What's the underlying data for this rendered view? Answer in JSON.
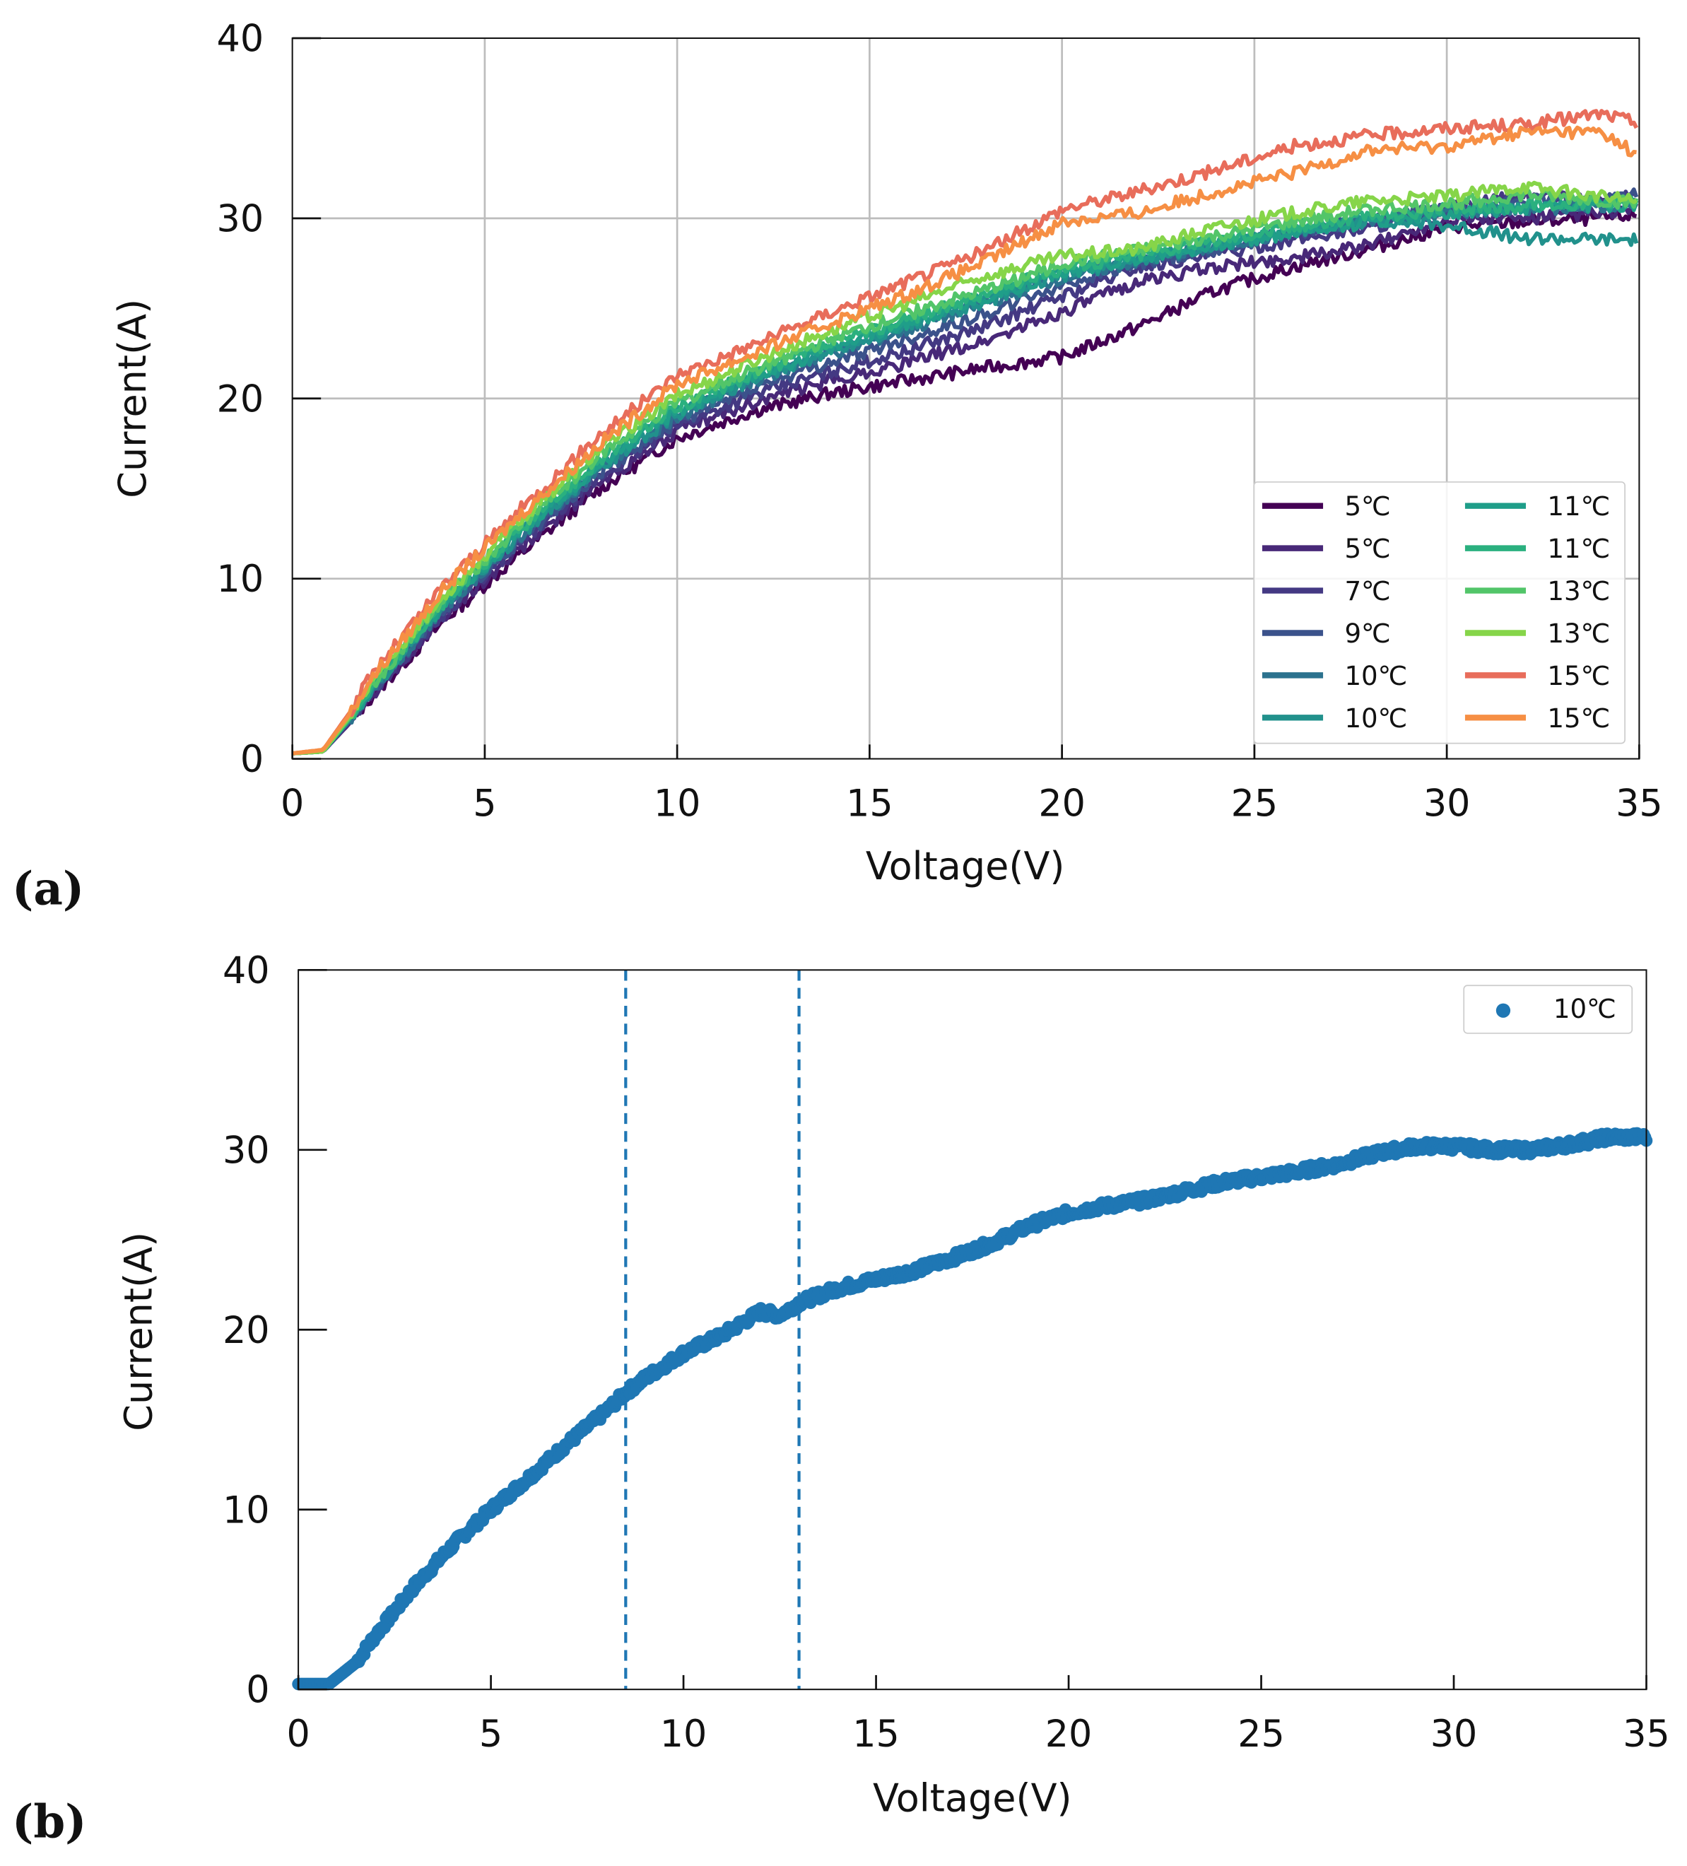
{
  "chart_data": [
    {
      "panel_label": "(a)",
      "type": "line",
      "xlabel": "Voltage(V)",
      "ylabel": "Current(A)",
      "xlim": [
        0,
        35
      ],
      "ylim": [
        0,
        40
      ],
      "xticks": [
        0,
        5,
        10,
        15,
        20,
        25,
        30,
        35
      ],
      "yticks": [
        0,
        10,
        20,
        30,
        40
      ],
      "grid": true,
      "legend_placement": "lower-right",
      "legend_columns": 2,
      "x": [
        0,
        0.8,
        1.5,
        2,
        4,
        6,
        8,
        10,
        12,
        14,
        16,
        18,
        20,
        22,
        24,
        26,
        28,
        30,
        32,
        34,
        35
      ],
      "series": [
        {
          "name": "5℃",
          "color": "#440154",
          "values": [
            0.3,
            0.4,
            2.0,
            3.3,
            7.8,
            11.5,
            15.0,
            17.8,
            19.3,
            20.3,
            21.0,
            21.7,
            22.3,
            24.0,
            26.0,
            27.3,
            28.3,
            29.5,
            29.8,
            30.0,
            30.2
          ]
        },
        {
          "name": "5℃",
          "color": "#482878",
          "values": [
            0.3,
            0.4,
            2.0,
            3.4,
            8.0,
            11.8,
            15.3,
            18.2,
            19.8,
            21.0,
            22.0,
            23.2,
            24.8,
            26.5,
            27.3,
            27.8,
            28.5,
            30.0,
            30.0,
            30.3,
            30.5
          ]
        },
        {
          "name": "7℃",
          "color": "#443983",
          "values": [
            0.3,
            0.4,
            2.1,
            3.5,
            8.2,
            12.1,
            15.6,
            18.5,
            20.2,
            21.5,
            22.7,
            24.0,
            25.7,
            27.3,
            28.0,
            28.8,
            29.5,
            30.5,
            31.3,
            31.0,
            31.3
          ]
        },
        {
          "name": "9℃",
          "color": "#3b528b",
          "values": [
            0.3,
            0.4,
            2.1,
            3.6,
            8.4,
            12.3,
            15.9,
            18.7,
            20.6,
            22.0,
            23.3,
            24.7,
            26.3,
            27.5,
            28.3,
            29.2,
            30.0,
            30.5,
            31.0,
            31.0,
            31.5
          ]
        },
        {
          "name": "10℃",
          "color": "#2c728e",
          "values": [
            0.3,
            0.4,
            2.2,
            3.7,
            8.5,
            12.5,
            16.1,
            19.0,
            21.0,
            22.5,
            23.8,
            25.3,
            26.7,
            27.6,
            28.4,
            29.2,
            29.8,
            30.3,
            30.5,
            30.7,
            30.8
          ]
        },
        {
          "name": "10℃",
          "color": "#21918c",
          "values": [
            0.3,
            0.4,
            2.2,
            3.7,
            8.6,
            12.6,
            16.2,
            19.1,
            21.1,
            22.6,
            24.0,
            25.4,
            26.8,
            27.7,
            28.5,
            29.3,
            29.9,
            29.6,
            28.9,
            28.8,
            28.8
          ]
        },
        {
          "name": "11℃",
          "color": "#1f9e89",
          "values": [
            0.3,
            0.4,
            2.2,
            3.8,
            8.7,
            12.7,
            16.4,
            19.3,
            21.2,
            22.8,
            24.2,
            25.6,
            27.0,
            27.8,
            28.5,
            29.2,
            29.8,
            30.3,
            30.5,
            30.7,
            30.8
          ]
        },
        {
          "name": "11℃",
          "color": "#2ab07f",
          "values": [
            0.3,
            0.4,
            2.3,
            3.8,
            8.8,
            12.9,
            16.6,
            19.5,
            21.4,
            23.0,
            24.4,
            25.8,
            27.2,
            28.0,
            28.8,
            29.5,
            30.1,
            30.5,
            30.7,
            30.9,
            31.0
          ]
        },
        {
          "name": "13℃",
          "color": "#52c569",
          "values": [
            0.3,
            0.4,
            2.3,
            3.9,
            9.0,
            13.1,
            16.9,
            19.8,
            21.6,
            23.3,
            24.7,
            26.0,
            27.5,
            28.2,
            29.0,
            29.8,
            30.5,
            30.8,
            31.3,
            31.0,
            30.8
          ]
        },
        {
          "name": "13℃",
          "color": "#86d549",
          "values": [
            0.3,
            0.4,
            2.4,
            4.0,
            9.2,
            13.4,
            17.2,
            20.2,
            22.1,
            23.8,
            25.3,
            26.8,
            27.9,
            28.3,
            29.5,
            30.3,
            31.0,
            31.2,
            31.8,
            31.2,
            31.0
          ]
        },
        {
          "name": "15℃",
          "color": "#e86d5b",
          "values": [
            0.3,
            0.5,
            2.6,
            4.5,
            9.8,
            14.0,
            18.0,
            21.3,
            23.0,
            24.8,
            26.5,
            28.2,
            30.5,
            31.5,
            32.7,
            34.0,
            34.6,
            35.0,
            35.2,
            35.8,
            35.3
          ]
        },
        {
          "name": "15℃",
          "color": "#f68f44",
          "values": [
            0.3,
            0.5,
            2.5,
            4.3,
            9.6,
            13.7,
            17.5,
            20.8,
            22.5,
            24.2,
            25.8,
            27.6,
            29.8,
            30.3,
            31.5,
            32.5,
            33.8,
            34.0,
            34.8,
            34.8,
            33.5
          ]
        }
      ]
    },
    {
      "panel_label": "(b)",
      "type": "scatter",
      "xlabel": "Voltage(V)",
      "ylabel": "Current(A)",
      "xlim": [
        0,
        35
      ],
      "ylim": [
        0,
        40
      ],
      "xticks": [
        0,
        5,
        10,
        15,
        20,
        25,
        30,
        35
      ],
      "yticks": [
        0,
        10,
        20,
        30,
        40
      ],
      "grid": false,
      "legend_placement": "top-right",
      "vlines": [
        8.5,
        13.0
      ],
      "color": "#1f77b4",
      "series": [
        {
          "name": "10℃",
          "x": [
            0,
            0.8,
            1.5,
            2,
            3,
            4,
            5,
            6,
            7,
            8,
            8.5,
            9,
            10,
            11,
            12,
            12.5,
            13,
            14,
            15,
            16,
            17,
            18,
            19,
            20,
            21,
            22,
            23,
            24,
            25,
            26,
            27,
            28,
            29,
            30,
            31,
            32,
            33,
            34,
            35
          ],
          "values": [
            0.3,
            0.3,
            1.5,
            3.0,
            5.7,
            8.0,
            10.0,
            11.8,
            13.7,
            15.5,
            16.5,
            17.3,
            18.7,
            19.7,
            21.0,
            20.8,
            21.5,
            22.3,
            22.8,
            23.3,
            24.0,
            24.8,
            25.8,
            26.5,
            26.9,
            27.2,
            27.7,
            28.2,
            28.5,
            28.8,
            29.2,
            29.8,
            30.2,
            30.2,
            30.0,
            30.0,
            30.3,
            30.7,
            30.7
          ]
        }
      ]
    }
  ]
}
